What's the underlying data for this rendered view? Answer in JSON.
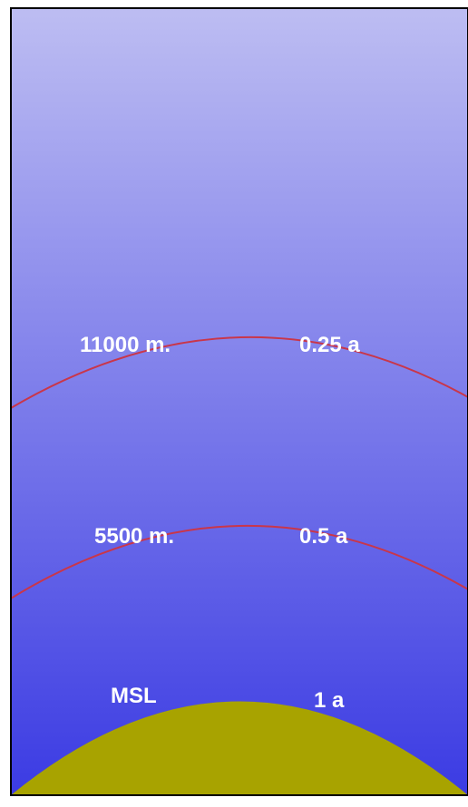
{
  "sky": {
    "top_color": "#bdbdf2",
    "bottom_color": "#3b3be3"
  },
  "ground": {
    "color": "#a8a300"
  },
  "isobar_color": "#c9364a",
  "label_color": "#ffffff",
  "levels": [
    {
      "altitude": "11000 m.",
      "pressure": "0.25 a"
    },
    {
      "altitude": "5500 m.",
      "pressure": "0.5 a"
    },
    {
      "altitude": "MSL",
      "pressure": "1 a"
    }
  ]
}
